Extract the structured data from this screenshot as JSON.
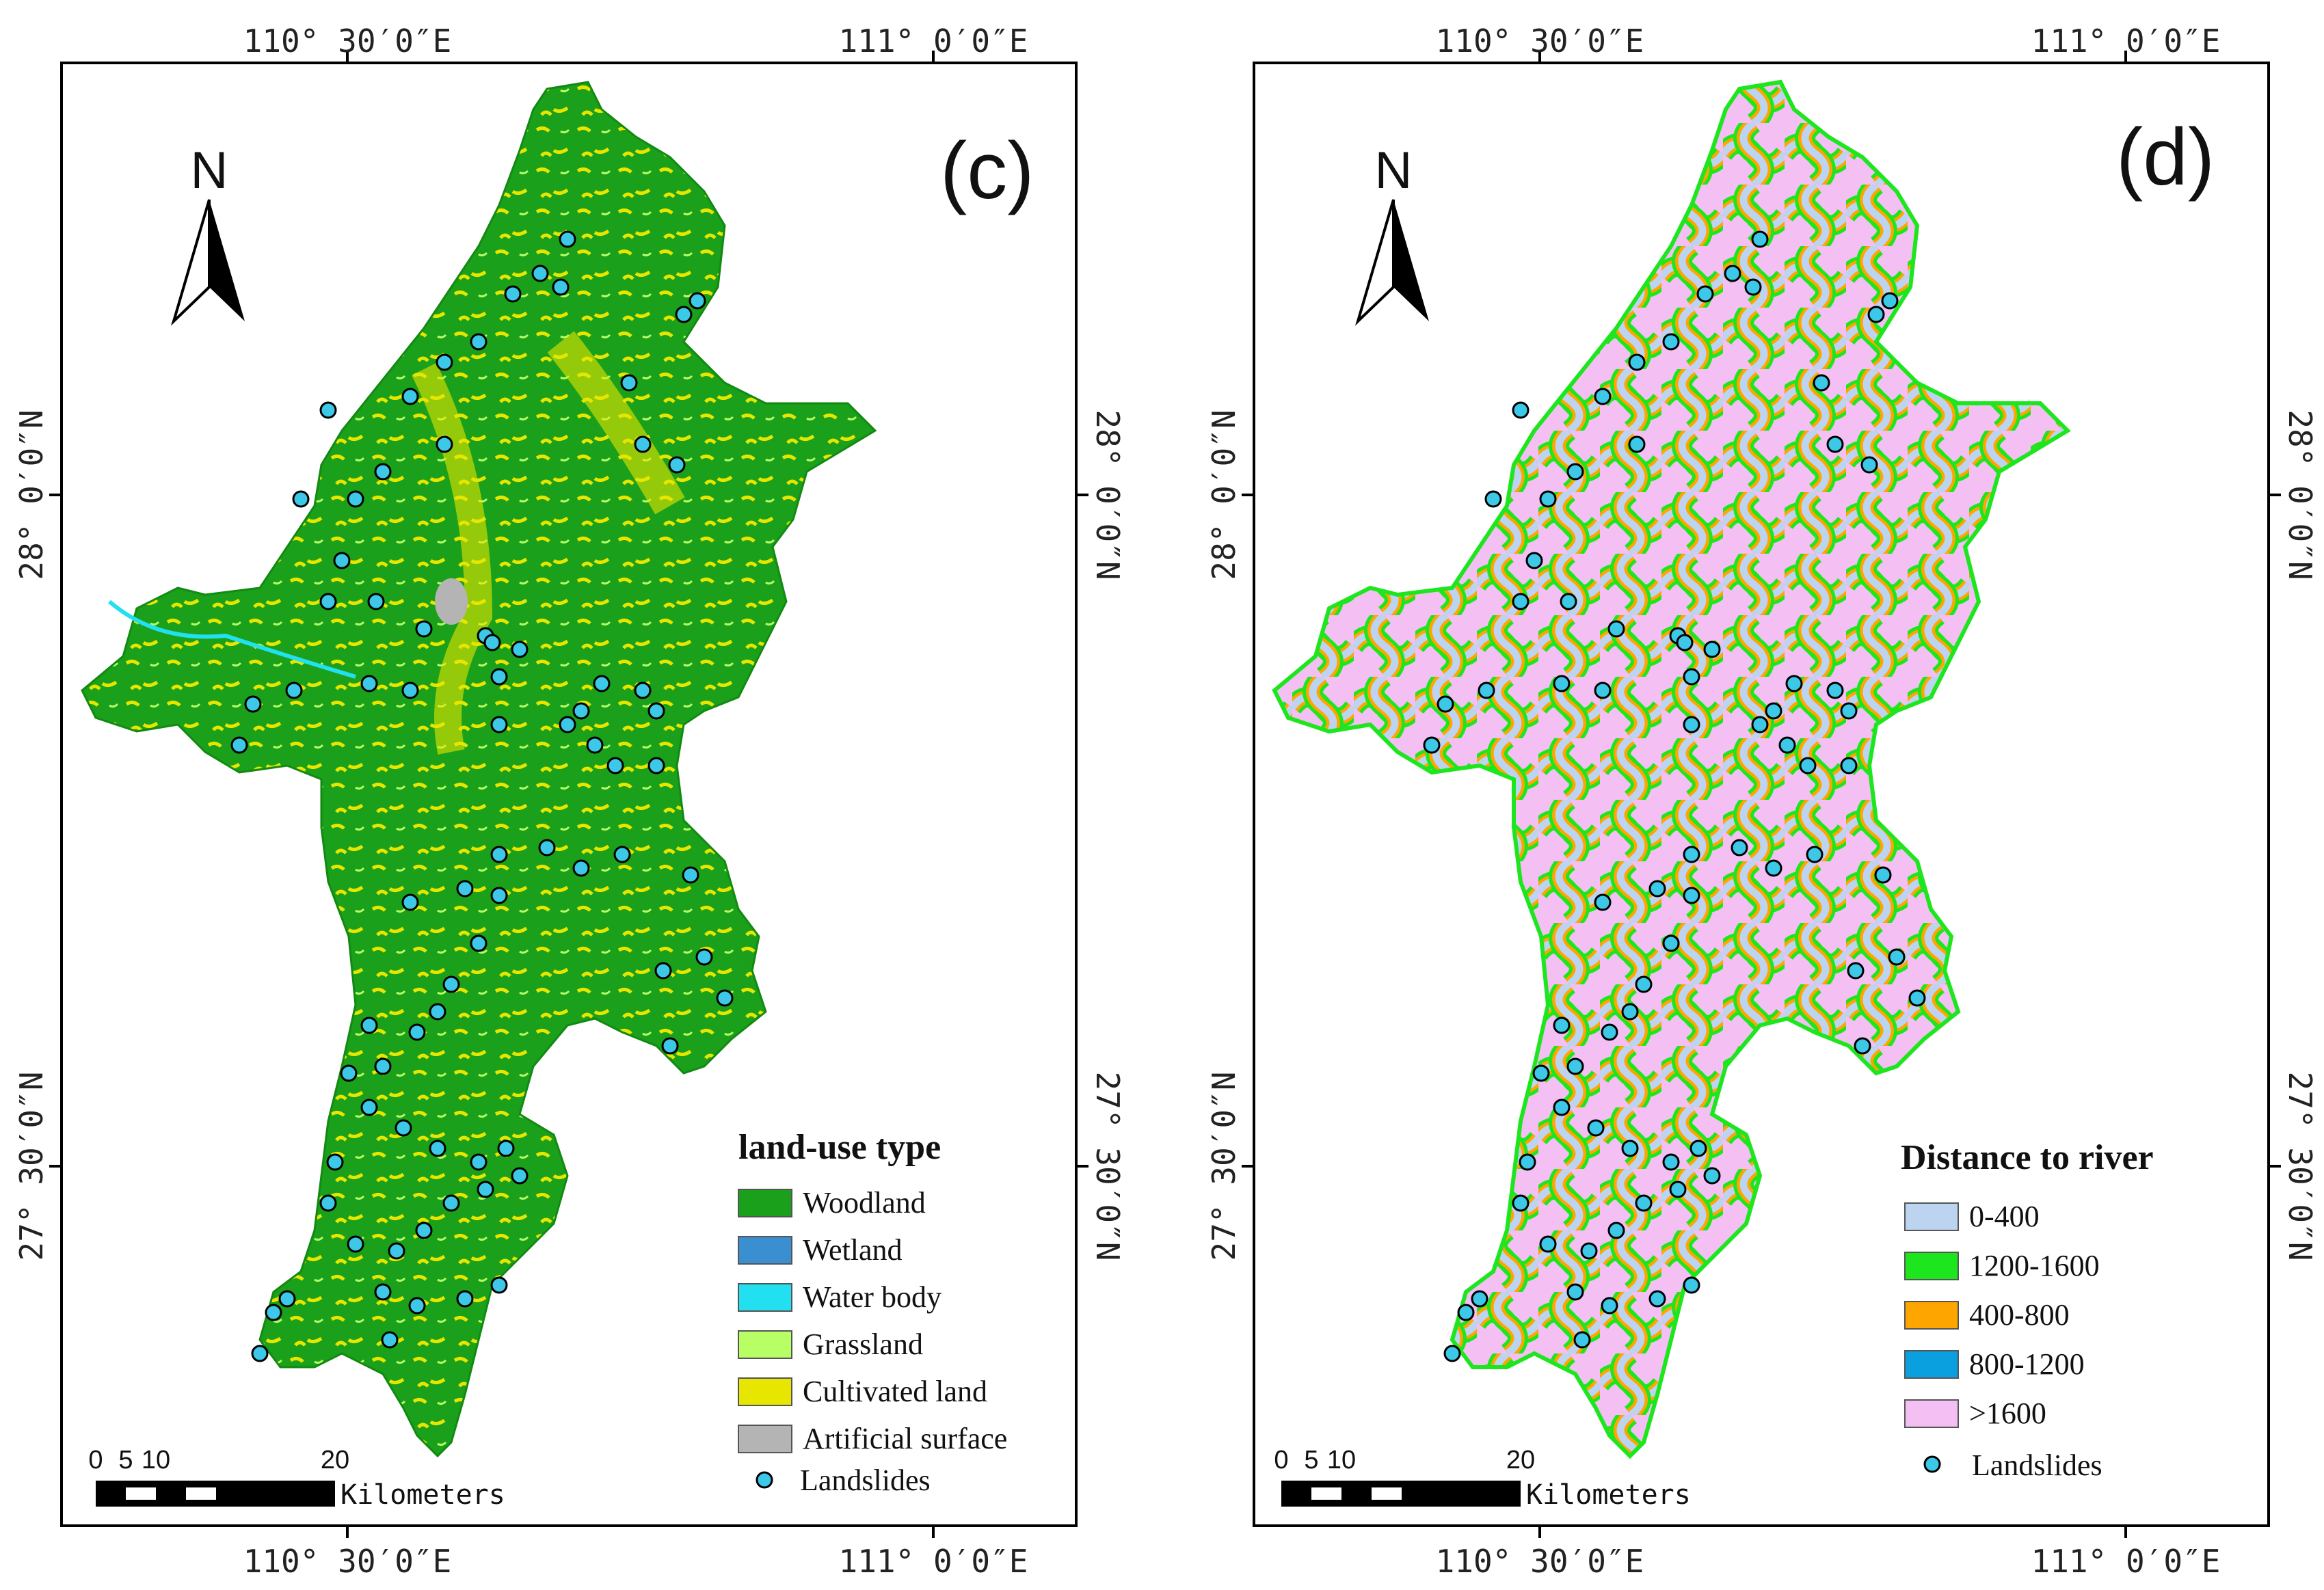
{
  "panels": [
    {
      "id": "c",
      "label": "(c)",
      "north": "N",
      "coords": {
        "top_left": "110° 30′0″E",
        "top_right": "111° 0′0″E",
        "bottom_left": "110° 30′0″E",
        "bottom_right": "111° 0′0″E",
        "left_upper": "28° 0′0″N",
        "left_lower": "27° 30′0″N",
        "right_upper": "28° 0′0″N",
        "right_lower": "27° 30′0″N"
      },
      "legend": {
        "title": "land-use type",
        "items": [
          {
            "label": "Woodland",
            "color": "#1aa01a"
          },
          {
            "label": "Wetland",
            "color": "#3a8fd0"
          },
          {
            "label": "Water body",
            "color": "#22e0f0"
          },
          {
            "label": "Grassland",
            "color": "#b8ff66"
          },
          {
            "label": "Cultivated land",
            "color": "#e6e600"
          },
          {
            "label": "Artificial surface",
            "color": "#b4b4b4"
          }
        ],
        "point_label": "Landslides"
      },
      "scale": {
        "ticks": [
          "0",
          "5",
          "10",
          "20"
        ],
        "unit": "Kilometers"
      }
    },
    {
      "id": "d",
      "label": "(d)",
      "north": "N",
      "coords": {
        "top_left": "110° 30′0″E",
        "top_right": "111° 0′0″E",
        "bottom_left": "110° 30′0″E",
        "bottom_right": "111° 0′0″E",
        "left_upper": "28° 0′0″N",
        "left_lower": "27° 30′0″N",
        "right_upper": "28° 0′0″N",
        "right_lower": "27° 30′0″N"
      },
      "legend": {
        "title": "Distance to river",
        "items": [
          {
            "label": "0-400",
            "color": "#bcd4f0"
          },
          {
            "label": "1200-1600",
            "color": "#1ee61e"
          },
          {
            "label": "400-800",
            "color": "#ffa500"
          },
          {
            "label": "800-1200",
            "color": "#0aa0e0"
          },
          {
            "label": ">1600",
            "color": "#f4c0f4"
          }
        ],
        "point_label": "Landslides"
      },
      "scale": {
        "ticks": [
          "0",
          "5",
          "10",
          "20"
        ],
        "unit": "Kilometers"
      }
    }
  ],
  "landslide_color": "#3cc8e6"
}
